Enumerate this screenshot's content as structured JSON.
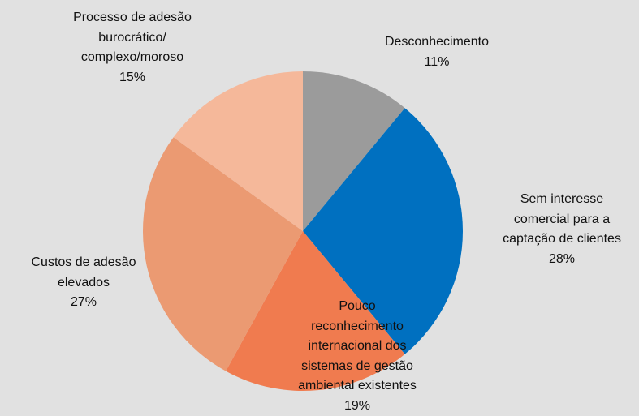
{
  "chart_data": {
    "type": "pie",
    "categories": [
      "Desconhecimento",
      "Sem interesse\ncomercial para a\ncaptação de clientes",
      "Pouco\nreconhecimento\ninternacional dos\nsistemas de gestão\nambiental existentes",
      "Custos de adesão\nelevados",
      "Processo de adesão\nburocrático/\ncomplexo/moroso"
    ],
    "values": [
      11,
      28,
      19,
      27,
      15
    ],
    "value_labels": [
      "11%",
      "28%",
      "19%",
      "27%",
      "15%"
    ],
    "colors": [
      "#9b9b9b",
      "#0070c0",
      "#f07b4f",
      "#eb9a72",
      "#f5b89a"
    ]
  }
}
